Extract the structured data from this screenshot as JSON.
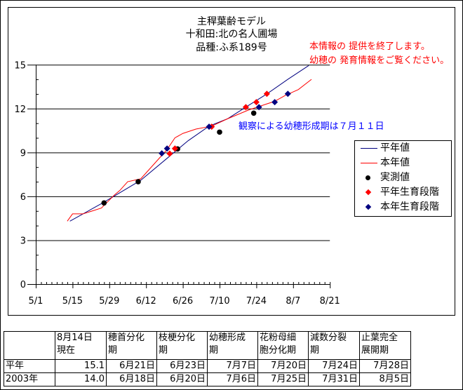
{
  "header": {
    "title_lines": [
      "主稈葉齢モデル",
      "十和田:北の名人圃場",
      "品種:ふ系189号"
    ],
    "notice_lines": [
      "本情報の 提供を終了します。",
      "幼穂の 発育情報をご覧ください。"
    ],
    "notice_color": "#ff0000"
  },
  "annotation": {
    "text": "観察による幼穂形成期は７月１１日",
    "color": "#0000ff"
  },
  "chart_data": {
    "type": "line",
    "title": "",
    "xlabel": "",
    "ylabel": "",
    "x_ticks": [
      "5/1",
      "5/15",
      "5/29",
      "6/12",
      "6/26",
      "7/10",
      "7/24",
      "8/7",
      "8/21"
    ],
    "xlim": [
      "5/1",
      "8/21"
    ],
    "y_ticks": [
      0,
      3,
      6,
      9,
      12,
      15
    ],
    "ylim": [
      0,
      15
    ],
    "grid": "horizontal major",
    "legend_position": "right",
    "series": [
      {
        "name": "平年値",
        "kind": "line",
        "color": "#000080",
        "points": [
          [
            "5/14",
            4.3
          ],
          [
            "5/27",
            5.6
          ],
          [
            "6/10",
            7.1
          ],
          [
            "6/22",
            8.9
          ],
          [
            "6/28",
            9.8
          ],
          [
            "7/6",
            10.8
          ],
          [
            "7/13",
            11.3
          ],
          [
            "7/20",
            12.1
          ],
          [
            "7/28",
            13.0
          ],
          [
            "8/5",
            14.0
          ],
          [
            "8/13",
            14.95
          ]
        ]
      },
      {
        "name": "本年値",
        "kind": "line",
        "color": "#ff0000",
        "points": [
          [
            "5/13",
            4.3
          ],
          [
            "5/15",
            4.8
          ],
          [
            "5/19",
            4.8
          ],
          [
            "5/26",
            5.2
          ],
          [
            "5/31",
            6.1
          ],
          [
            "6/2",
            6.4
          ],
          [
            "6/5",
            7.0
          ],
          [
            "6/10",
            7.2
          ],
          [
            "6/13",
            7.8
          ],
          [
            "6/16",
            8.4
          ],
          [
            "6/20",
            9.2
          ],
          [
            "6/23",
            10.0
          ],
          [
            "6/26",
            10.3
          ],
          [
            "7/1",
            10.6
          ],
          [
            "7/7",
            10.8
          ],
          [
            "7/13",
            11.3
          ],
          [
            "7/21",
            11.9
          ],
          [
            "7/26",
            12.2
          ],
          [
            "7/31",
            12.5
          ],
          [
            "8/4",
            12.9
          ],
          [
            "8/9",
            13.3
          ],
          [
            "8/14",
            14.0
          ]
        ]
      },
      {
        "name": "実測値",
        "kind": "circle",
        "color": "#000000",
        "points": [
          [
            "5/27",
            5.55
          ],
          [
            "6/9",
            7.0
          ],
          [
            "6/24",
            9.24
          ],
          [
            "7/10",
            10.39
          ],
          [
            "7/23",
            11.69
          ]
        ]
      },
      {
        "name": "平年生育段階",
        "kind": "diamond",
        "color": "#ff0000",
        "points": [
          [
            "6/21",
            8.92
          ],
          [
            "6/23",
            9.27
          ],
          [
            "7/7",
            10.76
          ],
          [
            "7/20",
            12.1
          ],
          [
            "7/24",
            12.44
          ],
          [
            "7/28",
            13.01
          ]
        ]
      },
      {
        "name": "本年生育段階",
        "kind": "diamond",
        "color": "#000080",
        "points": [
          [
            "6/18",
            8.94
          ],
          [
            "6/20",
            9.27
          ],
          [
            "7/6",
            10.76
          ],
          [
            "7/25",
            12.1
          ],
          [
            "7/31",
            12.44
          ],
          [
            "8/5",
            13.01
          ]
        ]
      }
    ]
  },
  "table": {
    "headers": [
      [
        "",
        ""
      ],
      [
        "8月14日",
        "現在"
      ],
      [
        "穂首分化",
        "期"
      ],
      [
        "枝梗分化",
        "期"
      ],
      [
        "幼穂形成",
        "期"
      ],
      [
        "花粉母細",
        "胞分化期"
      ],
      [
        "減数分裂",
        "期"
      ],
      [
        "止葉完全",
        "展開期"
      ]
    ],
    "rows": [
      [
        "平年",
        "15.1",
        "6月21日",
        "6月23日",
        "7月7日",
        "7月20日",
        "7月24日",
        "7月28日"
      ],
      [
        "2003年",
        "14.0",
        "6月18日",
        "6月20日",
        "7月6日",
        "7月25日",
        "7月31日",
        "8月5日"
      ]
    ]
  }
}
